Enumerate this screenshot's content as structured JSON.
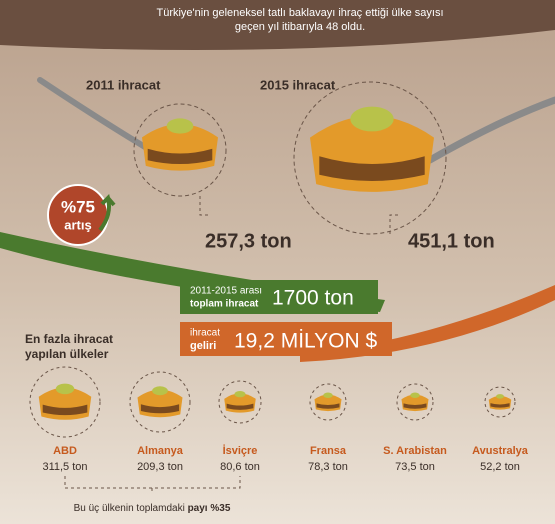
{
  "header": {
    "line1": "Türkiye'nin geleneksel tatlı baklavayı ihraç ettiği ülke sayısı",
    "line2": "geçen yıl itibarıyla 48 oldu."
  },
  "years": [
    {
      "label": "2011 ihracat",
      "amount": "257,3 ton"
    },
    {
      "label": "2015 ihracat",
      "amount": "451,1 ton"
    }
  ],
  "growth": {
    "percent": "%75",
    "label": "artış"
  },
  "total": {
    "line1": "2011-2015 arası",
    "line2": "toplam ihracat",
    "value": "1700 ton"
  },
  "revenue": {
    "line1": "ihracat",
    "line2": "geliri",
    "value": "19,2 MİLYON $"
  },
  "countries_title": {
    "line1": "En fazla ihracat",
    "line2": "yapılan ülkeler"
  },
  "countries": [
    {
      "name": "ABD",
      "amount": "311,5 ton"
    },
    {
      "name": "Almanya",
      "amount": "209,3 ton"
    },
    {
      "name": "İsviçre",
      "amount": "80,6 ton"
    },
    {
      "name": "Fransa",
      "amount": "78,3 ton"
    },
    {
      "name": "S. Arabistan",
      "amount": "73,5 ton"
    },
    {
      "name": "Avustralya",
      "amount": "52,2 ton"
    }
  ],
  "note": {
    "text": "Bu üç ülkenin toplamdaki",
    "bold": "payı %35"
  }
}
